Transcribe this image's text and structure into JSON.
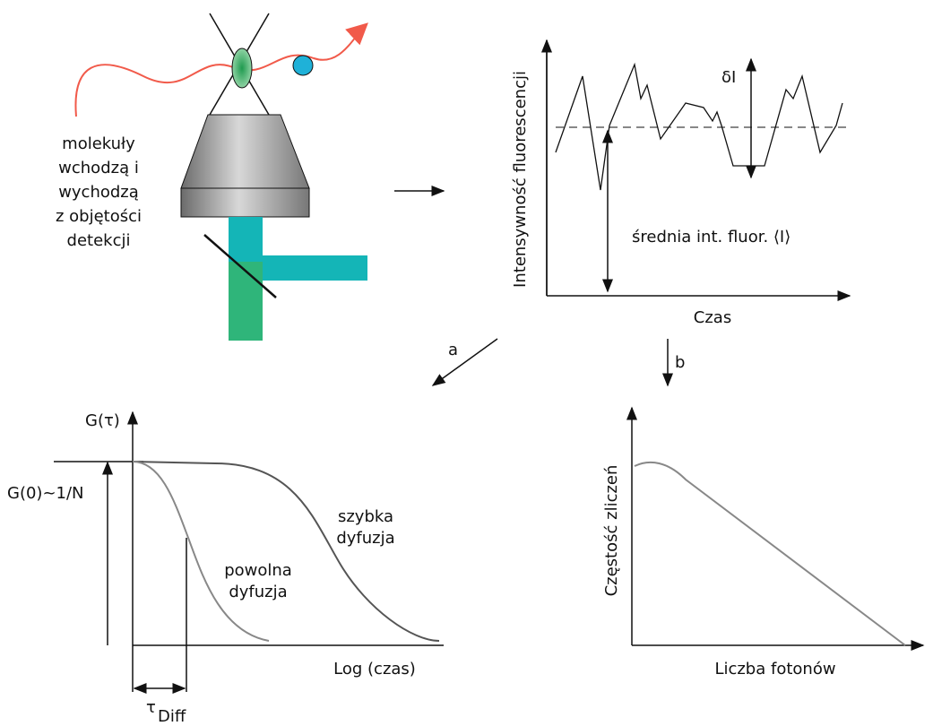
{
  "detection": {
    "lines": [
      "molekuły",
      "wchodzą i",
      "wychodzą",
      "z objętości",
      "detekcji"
    ]
  },
  "intensity_plot": {
    "ylabel": "Intensywność fluorescencji",
    "xlabel": "Czas",
    "delta_label": "δI",
    "mean_label": "średnia int. fluor. ⟨I⟩"
  },
  "arrows": {
    "a": "a",
    "b": "b"
  },
  "correlation_plot": {
    "ylabel": "G(τ)",
    "g0_label": "G(0)~1/N",
    "fast": [
      "szybka",
      "dyfuzja"
    ],
    "slow": [
      "powolna",
      "dyfuzja"
    ],
    "xlabel": "Log (czas)",
    "tau": "τ",
    "tau_sub": "Diff"
  },
  "histogram_plot": {
    "ylabel": "Częstość zliczeń",
    "xlabel": "Liczba fotonów"
  }
}
